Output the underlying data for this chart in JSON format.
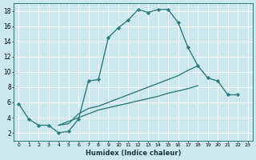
{
  "xlabel": "Humidex (Indice chaleur)",
  "background_color": "#cce8ef",
  "grid_color": "#ffffff",
  "line_color": "#2e7d7d",
  "xlim": [
    -0.5,
    23.5
  ],
  "ylim": [
    1,
    19
  ],
  "xticks": [
    0,
    1,
    2,
    3,
    4,
    5,
    6,
    7,
    8,
    9,
    10,
    11,
    12,
    13,
    14,
    15,
    16,
    17,
    18,
    19,
    20,
    21,
    22,
    23
  ],
  "yticks": [
    2,
    4,
    6,
    8,
    10,
    12,
    14,
    16,
    18
  ],
  "line1_x": [
    0,
    1,
    2,
    3,
    4,
    5,
    6,
    7,
    8,
    9,
    10,
    11,
    12,
    13,
    14,
    15,
    16,
    17,
    18,
    19,
    20,
    21,
    22
  ],
  "line1_y": [
    5.8,
    3.8,
    3.0,
    3.0,
    2.0,
    2.2,
    3.8,
    8.8,
    9.0,
    14.5,
    15.8,
    16.8,
    18.2,
    17.8,
    18.2,
    18.2,
    16.5,
    13.2,
    10.8,
    9.2,
    8.8,
    7.0,
    7.0
  ],
  "line2_x": [
    4,
    5,
    6,
    7,
    8,
    9,
    10,
    11,
    12,
    13,
    14,
    15,
    16,
    17,
    18
  ],
  "line2_y": [
    3.0,
    3.2,
    4.5,
    5.2,
    5.5,
    6.0,
    6.5,
    7.0,
    7.5,
    8.0,
    8.5,
    9.0,
    9.5,
    10.2,
    10.8
  ],
  "line3_x": [
    4,
    5,
    6,
    7,
    8,
    9,
    10,
    11,
    12,
    13,
    14,
    15,
    16,
    17,
    18
  ],
  "line3_y": [
    3.0,
    3.5,
    4.0,
    4.5,
    5.0,
    5.3,
    5.6,
    5.9,
    6.2,
    6.5,
    6.8,
    7.2,
    7.5,
    7.8,
    8.2
  ]
}
